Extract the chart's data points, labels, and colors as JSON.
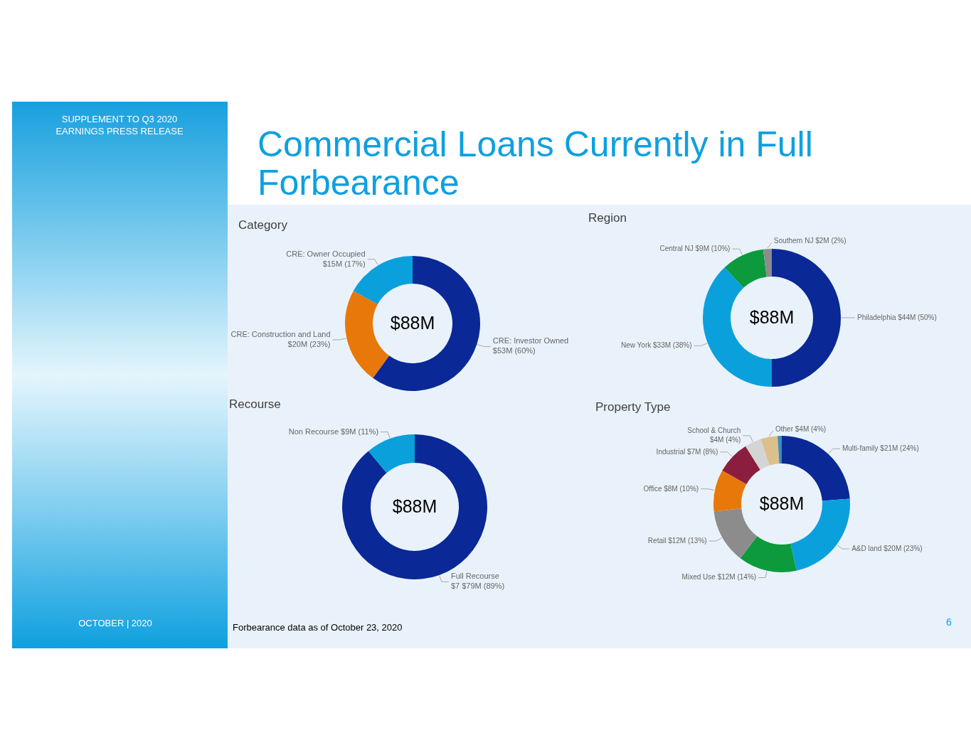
{
  "chart_data": [
    {
      "type": "other",
      "title": "Commercial Loans Currently in Full Forbearance",
      "annotations": [
        "SUPPLEMENT TO Q3 2020 EARNINGS PRESS RELEASE",
        "OCTOBER | 2020",
        "Forbearance data as of October 23, 2020",
        "6"
      ]
    },
    {
      "type": "donut",
      "title": "Category",
      "categories": [
        "CRE: Investor Owned",
        "CRE: Construction and Land",
        "CRE: Owner Occupied"
      ],
      "values": [
        60,
        23,
        17
      ],
      "value_labels": [
        "$53M (60%)",
        "$20M (23%)",
        "$15M (17%)"
      ],
      "colors": [
        "#0a2896",
        "#e8780a",
        "#0aa0dc"
      ],
      "annotations": [
        "$88M"
      ]
    },
    {
      "type": "donut",
      "title": "Region",
      "categories": [
        "Philadelphia",
        "New York",
        "Central NJ",
        "Southern NJ"
      ],
      "values": [
        50,
        38,
        10,
        2
      ],
      "value_labels": [
        "$44M (50%)",
        "$33M (38%)",
        "$9M (10%)",
        "$2M (2%)"
      ],
      "colors": [
        "#0a2896",
        "#0aa0dc",
        "#0c9a3c",
        "#8c8c8c"
      ],
      "annotations": [
        "$88M"
      ]
    },
    {
      "type": "donut",
      "title": "Recourse",
      "categories": [
        "Full Recourse",
        "Non Recourse"
      ],
      "values": [
        89,
        11
      ],
      "value_labels": [
        "$7 $79M (89%)",
        "$9M (11%)"
      ],
      "colors": [
        "#0a2896",
        "#0aa0dc"
      ],
      "annotations": [
        "$88M"
      ]
    },
    {
      "type": "donut",
      "title": "Property Type",
      "categories": [
        "Multi-family",
        "A&D land",
        "Mixed Use",
        "Retail",
        "Office",
        "Industrial",
        "School & Church",
        "Other",
        null
      ],
      "values": [
        24,
        23,
        14,
        13,
        10,
        8,
        4,
        4,
        1
      ],
      "value_labels": [
        "$21M (24%)",
        "$20M (23%)",
        "$12M (14%)",
        "$12M (13%)",
        "$8M (10%)",
        "$7M (8%)",
        "$4M (4%)",
        "$4M (4%)",
        null
      ],
      "colors": [
        "#0a2896",
        "#0aa0dc",
        "#0c9a3c",
        "#8c8c8c",
        "#e8780a",
        "#8b1e3f",
        "#d4d4d4",
        "#dcc08c",
        "#3a8fc0"
      ],
      "annotations": [
        "$88M"
      ]
    }
  ]
}
